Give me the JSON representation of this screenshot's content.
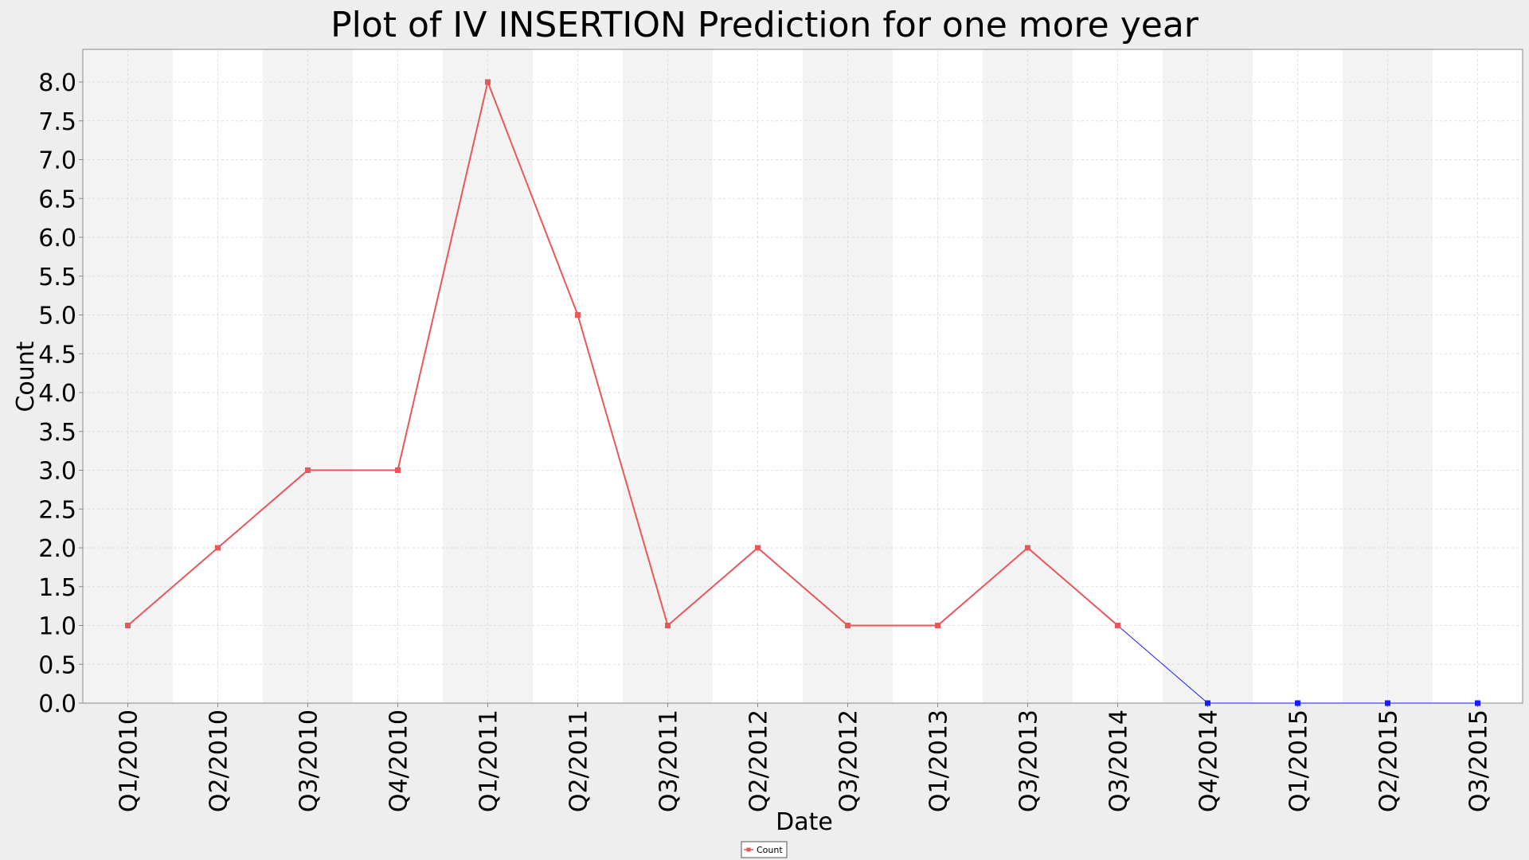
{
  "chart_data": {
    "type": "line",
    "title": "Plot of IV INSERTION Prediction for one more year",
    "xlabel": "Date",
    "ylabel": "Count",
    "categories": [
      "Q1/2010",
      "Q2/2010",
      "Q3/2010",
      "Q4/2010",
      "Q1/2011",
      "Q2/2011",
      "Q3/2011",
      "Q2/2012",
      "Q3/2012",
      "Q1/2013",
      "Q3/2013",
      "Q3/2014",
      "Q4/2014",
      "Q1/2015",
      "Q2/2015",
      "Q3/2015"
    ],
    "ylim": [
      0,
      8.0
    ],
    "yticks": [
      "0.0",
      "0.5",
      "1.0",
      "1.5",
      "2.0",
      "2.5",
      "3.0",
      "3.5",
      "4.0",
      "4.5",
      "5.0",
      "5.5",
      "6.0",
      "6.5",
      "7.0",
      "7.5",
      "8.0"
    ],
    "grid": true,
    "legend_position": "bottom-center",
    "series": [
      {
        "name": "Count",
        "color": "#e8575a",
        "marker": "square",
        "values": [
          1,
          2,
          3,
          3,
          8,
          5,
          1,
          2,
          1,
          1,
          2,
          1,
          null,
          null,
          null,
          null
        ]
      },
      {
        "color": "#1a1aff",
        "marker": "square",
        "values": [
          null,
          null,
          null,
          null,
          null,
          null,
          null,
          null,
          null,
          null,
          null,
          1,
          0,
          0,
          0,
          0
        ]
      }
    ],
    "colors": {
      "background": "#eeeeee",
      "plot_band_dark": "#f3f3f3",
      "plot_band_light": "#ffffff",
      "gridline": "#dddddd",
      "axis": "#888888"
    }
  }
}
